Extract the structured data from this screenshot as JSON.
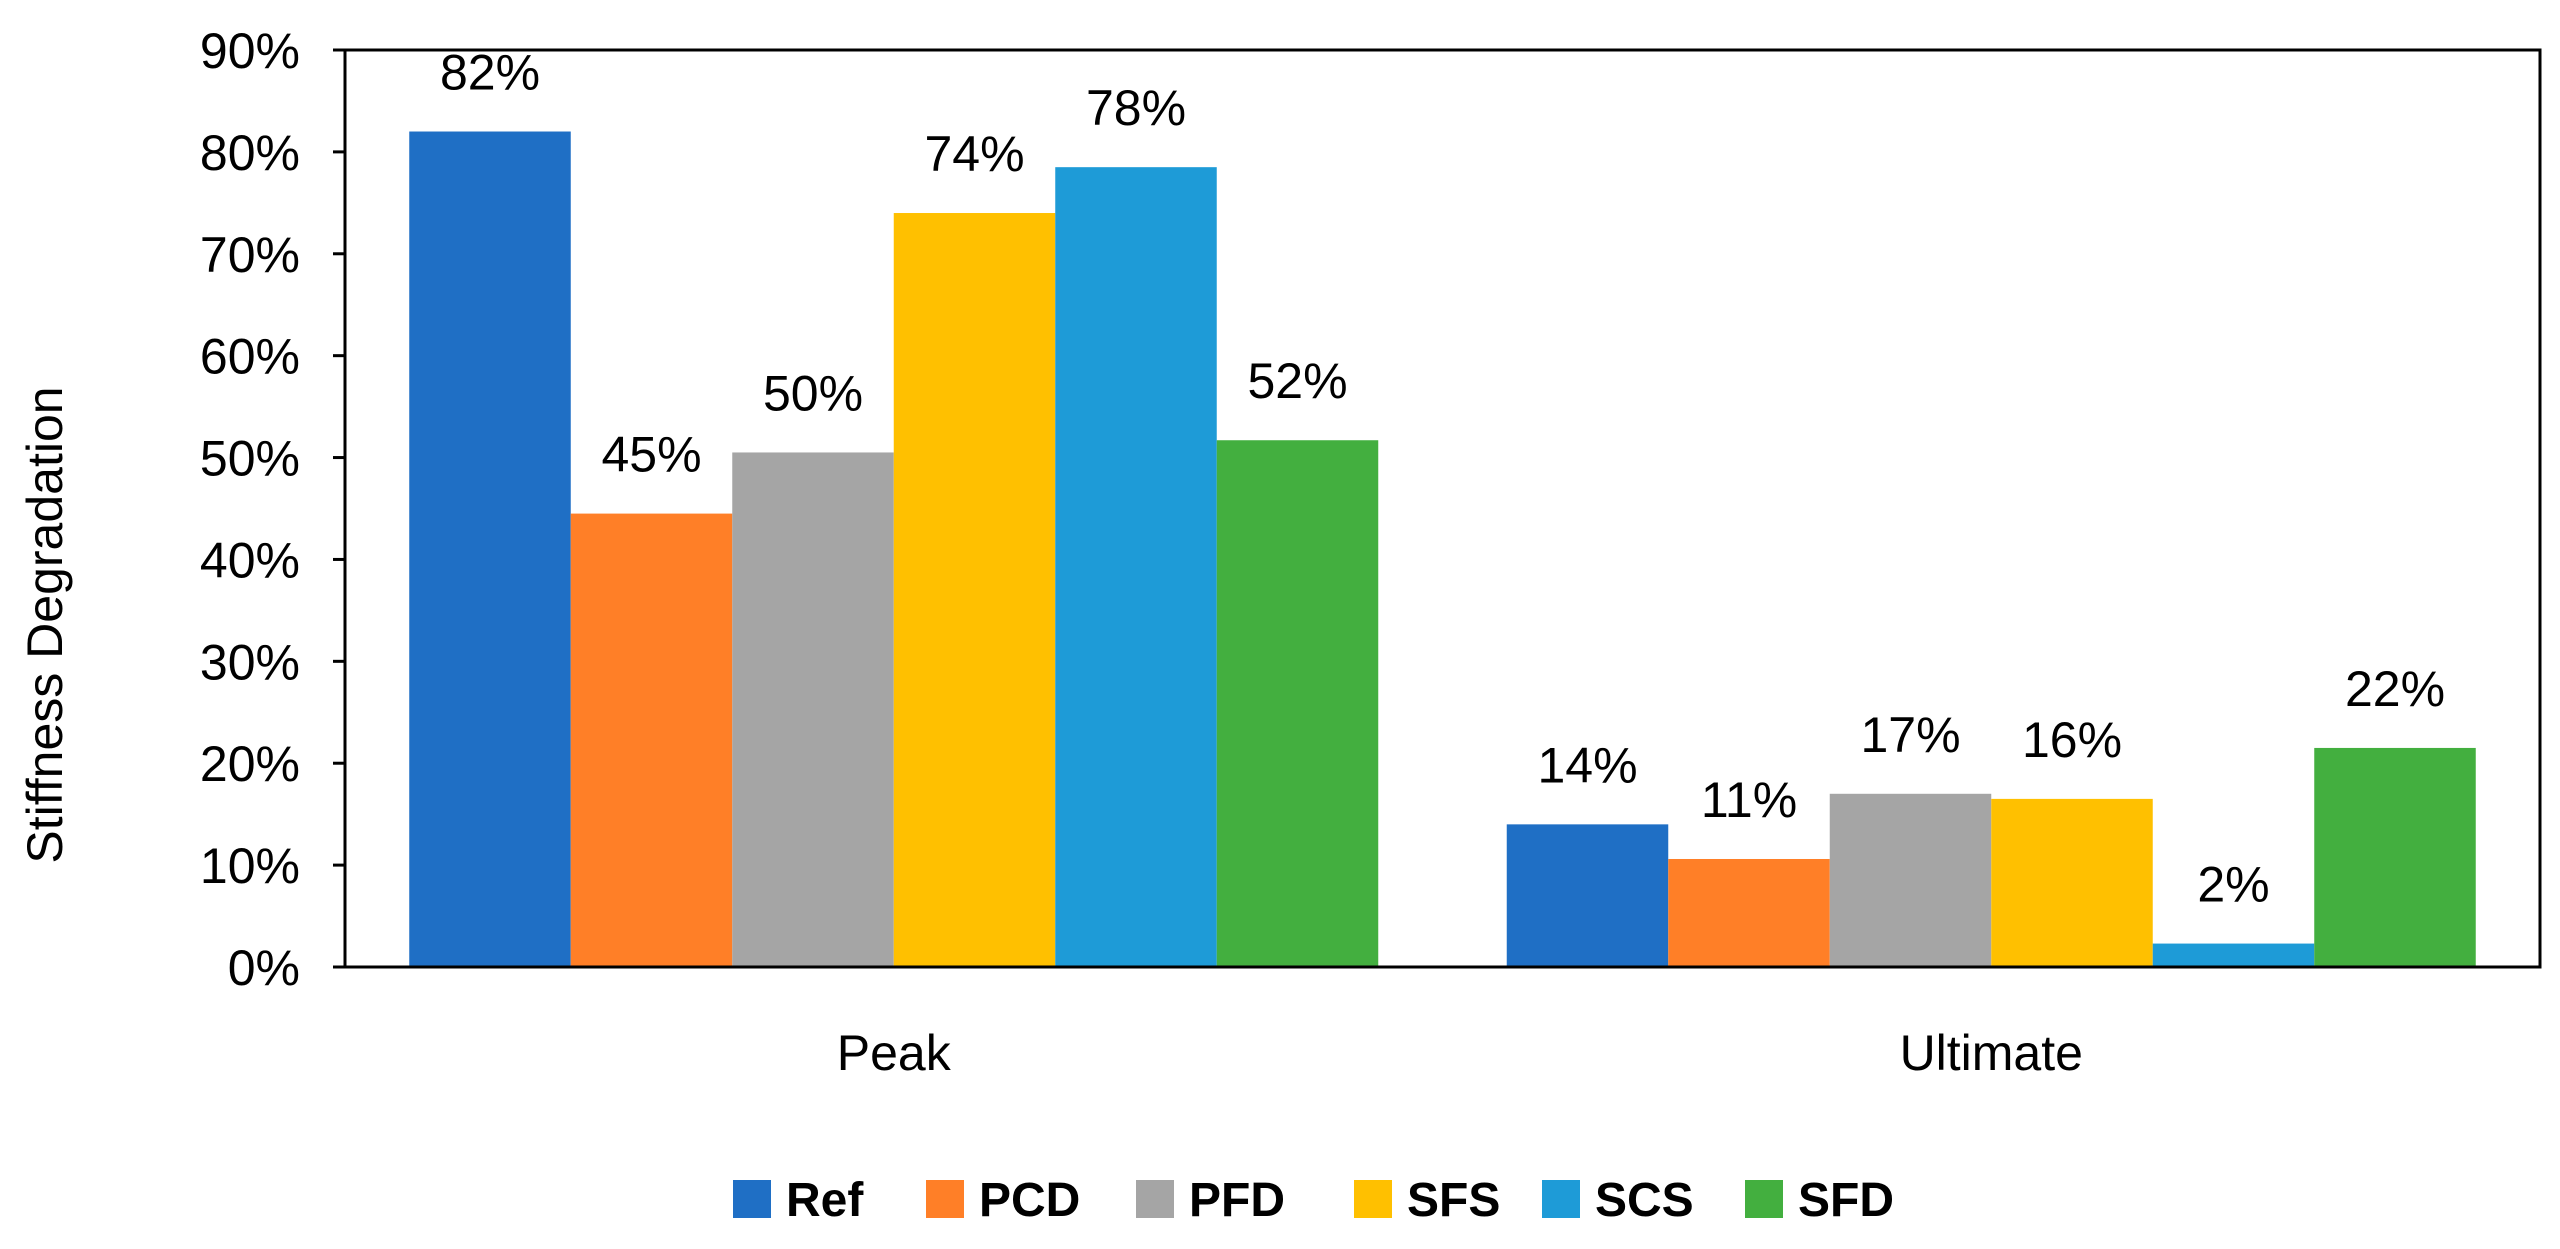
{
  "chart_data": {
    "type": "bar",
    "title": "",
    "xlabel": "",
    "ylabel": "Stiffness Degradation",
    "ylim": [
      0,
      90
    ],
    "yticks": [
      "0%",
      "10%",
      "20%",
      "30%",
      "40%",
      "50%",
      "60%",
      "70%",
      "80%",
      "90%"
    ],
    "grid": false,
    "legend_position": "bottom",
    "categories": [
      "Peak",
      "Ultimate"
    ],
    "series": [
      {
        "name": "Ref",
        "color": "#1F6FC5",
        "values": [
          82,
          14
        ],
        "labels": [
          "82%",
          "14%"
        ]
      },
      {
        "name": "PCD",
        "color": "#FF7F27",
        "values": [
          44.5,
          10.6
        ],
        "labels": [
          "45%",
          "11%"
        ]
      },
      {
        "name": "PFD",
        "color": "#A5A5A5",
        "values": [
          50.5,
          17
        ],
        "labels": [
          "50%",
          "17%"
        ]
      },
      {
        "name": "SFS",
        "color": "#FFC000",
        "values": [
          74,
          16.5
        ],
        "labels": [
          "74%",
          "16%"
        ]
      },
      {
        "name": "SCS",
        "color": "#1E9BD7",
        "values": [
          78.5,
          2.3
        ],
        "labels": [
          "78%",
          "2%"
        ]
      },
      {
        "name": "SFD",
        "color": "#43AF3F",
        "values": [
          51.7,
          21.5
        ],
        "labels": [
          "52%",
          "22%"
        ]
      }
    ]
  }
}
